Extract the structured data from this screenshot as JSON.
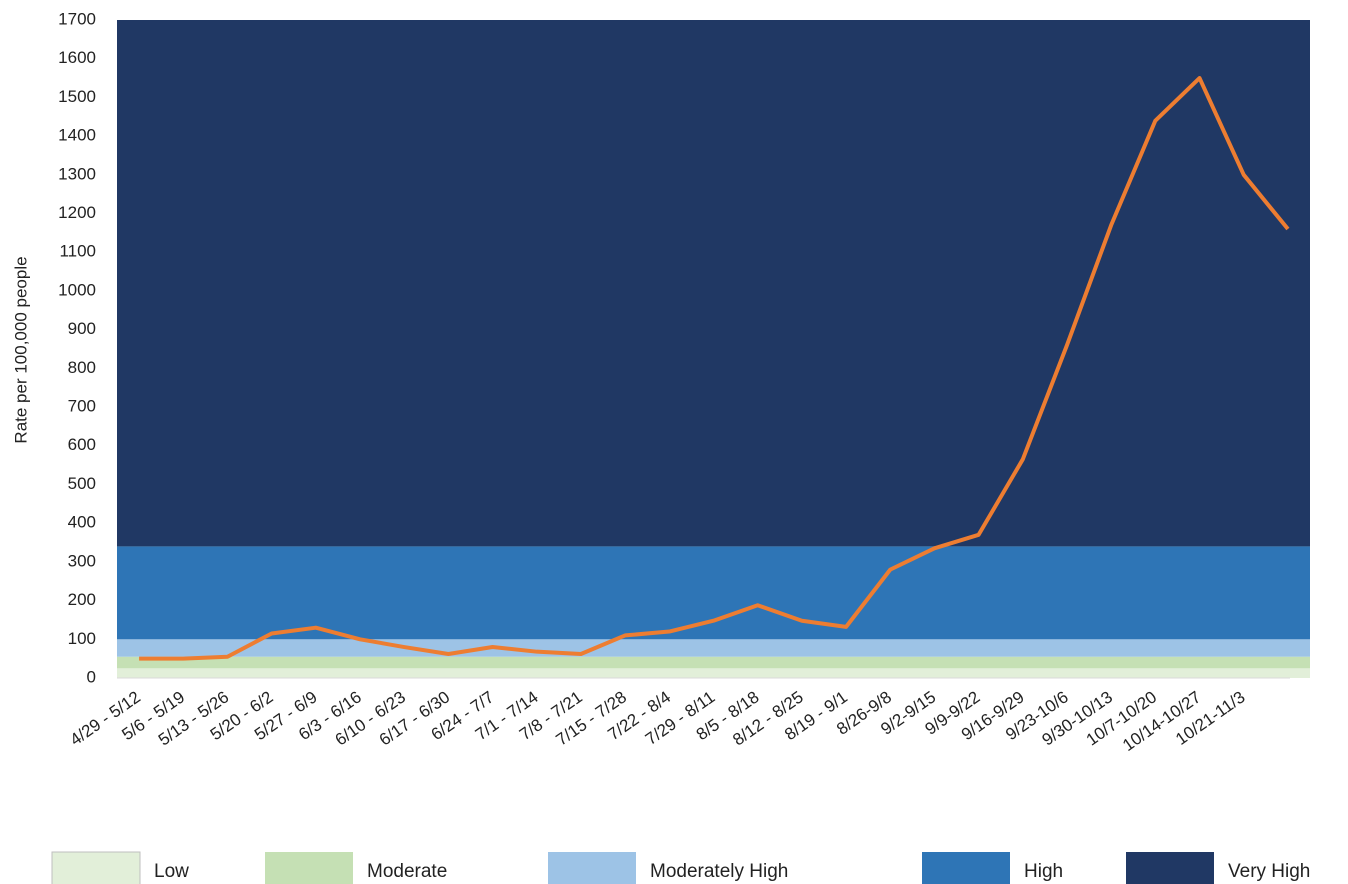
{
  "chart_data": {
    "type": "line",
    "y_label": "Rate per 100,000 people",
    "categories": [
      "4/29 - 5/12",
      "5/6 - 5/19",
      "5/13 - 5/26",
      "5/20 - 6/2",
      "5/27 - 6/9",
      "6/3 - 6/16",
      "6/10 - 6/23",
      "6/17 - 6/30",
      "6/24 - 7/7",
      "7/1 - 7/14",
      "7/8 - 7/21",
      "7/15 - 7/28",
      "7/22 - 8/4",
      "7/29 - 8/11",
      "8/5 - 8/18",
      "8/12 - 8/25",
      "8/19 - 9/1",
      "8/26-9/8",
      "9/2-9/15",
      "9/9-9/22",
      "9/16-9/29",
      "9/23-10/6",
      "9/30-10/13",
      "10/7-10/20",
      "10/14-10/27",
      "10/21-11/3",
      null
    ],
    "series": [
      {
        "color": "#ed7d31",
        "values": [
          50,
          50,
          55,
          115,
          130,
          100,
          80,
          62,
          80,
          68,
          62,
          110,
          120,
          148,
          188,
          148,
          132,
          280,
          335,
          370,
          565,
          860,
          1170,
          1440,
          1550,
          1300,
          1160
        ]
      }
    ],
    "ylim": [
      0,
      1700
    ],
    "yticks": [
      0,
      100,
      200,
      300,
      400,
      500,
      600,
      700,
      800,
      900,
      1000,
      1100,
      1200,
      1300,
      1400,
      1500,
      1600,
      1700
    ],
    "bands": [
      {
        "name": "Low",
        "color": "#e2efd9",
        "from": 0,
        "to": 25
      },
      {
        "name": "Moderate",
        "color": "#c5e0b4",
        "from": 25,
        "to": 55
      },
      {
        "name": "Moderately High",
        "color": "#9dc3e6",
        "from": 55,
        "to": 100
      },
      {
        "name": "High",
        "color": "#2e75b6",
        "from": 100,
        "to": 340
      },
      {
        "name": "Very High",
        "color": "#203864",
        "from": 340,
        "to": 1700
      }
    ]
  }
}
